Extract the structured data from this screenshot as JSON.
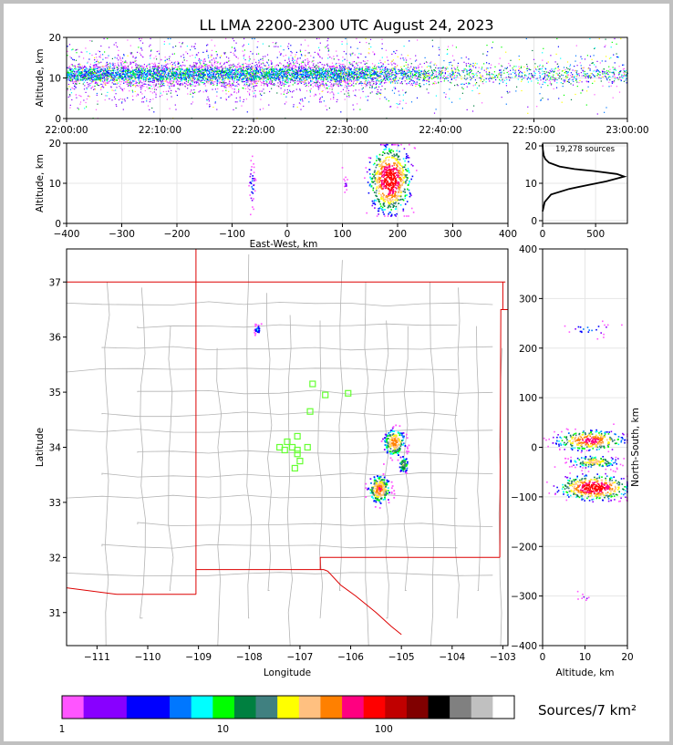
{
  "title": "LL LMA 2200-2300 UTC August 24, 2023",
  "chart_data": [
    {
      "type": "scatter",
      "panel": "time-height",
      "ylabel": "Altitude, km",
      "xlabel": "",
      "x_ticks": [
        "22:00:00",
        "22:10:00",
        "22:20:00",
        "22:30:00",
        "22:40:00",
        "22:50:00",
        "23:00:00"
      ],
      "xlim": [
        "22:00:00",
        "23:00:00"
      ],
      "ylim": [
        0,
        20
      ],
      "y_ticks": [
        0,
        10,
        20
      ],
      "activity_by_minute": [
        1.0,
        1.0,
        1.0,
        1.0,
        1.0,
        1.0,
        1.0,
        1.0,
        1.0,
        1.0,
        1.0,
        1.0,
        1.0,
        1.0,
        1.0,
        1.0,
        1.0,
        1.0,
        1.0,
        1.0,
        1.0,
        1.0,
        1.0,
        1.0,
        1.0,
        1.0,
        1.0,
        1.0,
        1.0,
        1.0,
        0.9,
        0.85,
        0.8,
        0.7,
        0.6,
        0.55,
        0.5,
        0.45,
        0.4,
        0.35,
        0.3,
        0.3,
        0.25,
        0.25,
        0.2,
        0.2,
        0.2,
        0.2,
        0.2,
        0.2,
        0.25,
        0.25,
        0.25,
        0.25,
        0.25,
        0.25,
        0.25,
        0.25,
        0.25,
        0.25
      ],
      "core_altitude_km": 11
    },
    {
      "type": "heatmap",
      "panel": "east-west-altitude",
      "xlabel": "East-West, km",
      "ylabel": "Altitude, km",
      "xlim": [
        -400,
        400
      ],
      "ylim": [
        0,
        20
      ],
      "x_ticks": [
        -400,
        -300,
        -200,
        -100,
        0,
        100,
        200,
        300,
        400
      ],
      "y_ticks": [
        0,
        10,
        20
      ],
      "clusters": [
        {
          "x": -65,
          "y": 10,
          "sx": 3,
          "sy": 3,
          "density": 6
        },
        {
          "x": 185,
          "y": 11,
          "sx": 18,
          "sy": 4,
          "density": 120
        },
        {
          "x": 105,
          "y": 10,
          "sx": 3,
          "sy": 1,
          "density": 2
        }
      ]
    },
    {
      "type": "line",
      "panel": "altitude-histogram",
      "annotation": "19,278 sources",
      "xlim": [
        0,
        800
      ],
      "ylim": [
        0,
        20
      ],
      "x_ticks": [
        0,
        500
      ],
      "y_ticks": [
        0,
        10,
        20
      ],
      "x": [
        0,
        20,
        80,
        250,
        420,
        600,
        770,
        700,
        480,
        300,
        160,
        60,
        25,
        10,
        3,
        0
      ],
      "y": [
        2.5,
        5,
        7,
        8.5,
        9.5,
        10.5,
        11.8,
        12.5,
        13.3,
        13.8,
        14.5,
        15.5,
        16.5,
        17.5,
        19,
        20.5
      ]
    },
    {
      "type": "scatter",
      "panel": "plan-view",
      "xlabel": "Longitude",
      "ylabel": "Latitude",
      "xlim": [
        -111.6,
        -102.9
      ],
      "ylim": [
        30.4,
        37.6
      ],
      "x_ticks": [
        -111,
        -110,
        -109,
        -108,
        -107,
        -106,
        -105,
        -104,
        -103
      ],
      "y_ticks": [
        31,
        32,
        33,
        34,
        35,
        36,
        37
      ],
      "clusters": [
        {
          "lon": -107.85,
          "lat": 36.15,
          "slon": 0.03,
          "slat": 0.05,
          "density": 8
        },
        {
          "lon": -105.15,
          "lat": 34.1,
          "slon": 0.1,
          "slat": 0.12,
          "density": 60
        },
        {
          "lon": -104.97,
          "lat": 33.7,
          "slon": 0.05,
          "slat": 0.08,
          "density": 25
        },
        {
          "lon": -105.45,
          "lat": 33.25,
          "slon": 0.1,
          "slat": 0.12,
          "density": 70
        }
      ],
      "stations": [
        [
          -106.75,
          35.15
        ],
        [
          -106.5,
          34.95
        ],
        [
          -106.05,
          34.98
        ],
        [
          -106.8,
          34.65
        ],
        [
          -107.05,
          34.2
        ],
        [
          -107.25,
          34.1
        ],
        [
          -107.15,
          34.0
        ],
        [
          -107.4,
          34.0
        ],
        [
          -107.3,
          33.95
        ],
        [
          -107.05,
          33.95
        ],
        [
          -106.85,
          34.0
        ],
        [
          -107.05,
          33.88
        ],
        [
          -107.0,
          33.75
        ],
        [
          -107.1,
          33.62
        ]
      ]
    },
    {
      "type": "heatmap",
      "panel": "north-south-altitude",
      "xlabel": "Altitude, km",
      "ylabel": "North-South, km",
      "xlim": [
        0,
        20
      ],
      "ylim": [
        -400,
        400
      ],
      "x_ticks": [
        0,
        10,
        20
      ],
      "y_ticks": [
        -400,
        -300,
        -200,
        -100,
        0,
        100,
        200,
        300,
        400
      ],
      "clusters": [
        {
          "x": 11,
          "y": 240,
          "sx": 3,
          "sy": 8,
          "density": 6
        },
        {
          "x": 11,
          "y": 15,
          "sx": 4,
          "sy": 10,
          "density": 80
        },
        {
          "x": 12,
          "y": -28,
          "sx": 3,
          "sy": 6,
          "density": 40
        },
        {
          "x": 12,
          "y": -80,
          "sx": 4,
          "sy": 12,
          "density": 120
        },
        {
          "x": 10,
          "y": -300,
          "sx": 1,
          "sy": 8,
          "density": 2
        }
      ]
    }
  ],
  "colorbar": {
    "label": "Sources/7 km²",
    "tick_labels": [
      "1",
      "10",
      "100"
    ],
    "tick_values": [
      1,
      10,
      100
    ],
    "colors": [
      "#ff55ff",
      "#8800ff",
      "#8800ff",
      "#0000ff",
      "#0000ff",
      "#0077ff",
      "#00ffff",
      "#00ff00",
      "#008040",
      "#408080",
      "#ffff00",
      "#ffc080",
      "#ff8000",
      "#ff0080",
      "#ff0000",
      "#c00000",
      "#800000",
      "#000000",
      "#808080",
      "#c0c0c0",
      "#ffffff"
    ]
  },
  "map": {
    "state_border_color": "#dd0000",
    "county_line_color": "#b4b4b4",
    "station_color": "#66ff33"
  }
}
